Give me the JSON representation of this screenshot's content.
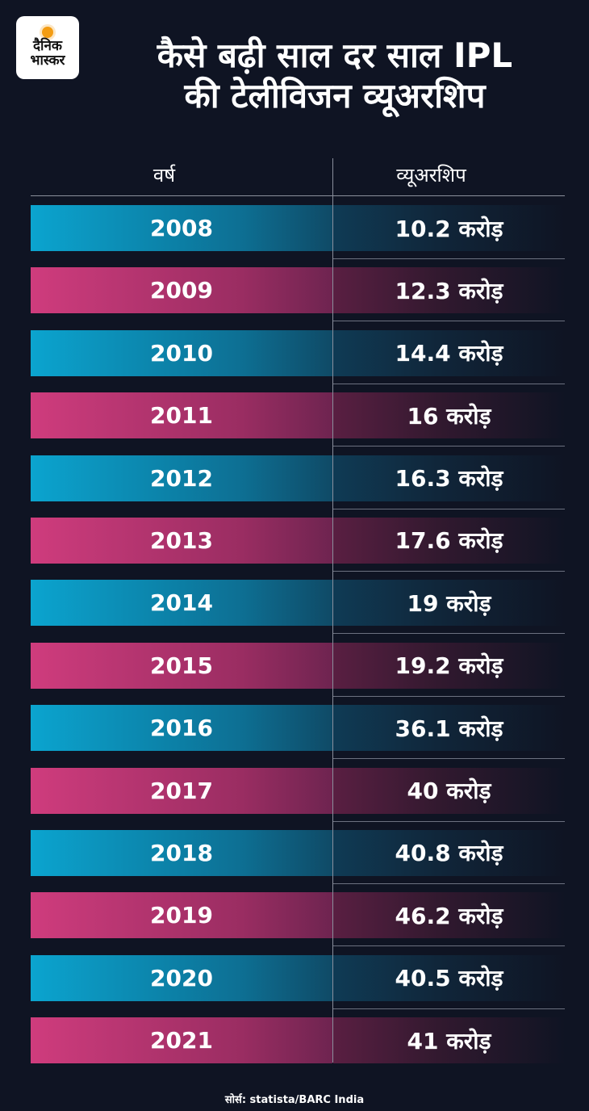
{
  "logo": {
    "line1": "दैनिक",
    "line2": "भास्कर",
    "accent": "#f39c12"
  },
  "title_line1": "कैसे बढ़ी साल दर साल IPL",
  "title_line2": "की टेलीविजन व्यूअरशिप",
  "source": "सोर्स: statista/BARC India",
  "colors": {
    "cyan": "#0ba4cf",
    "pink": "#cf3c7d",
    "background": "#0f1423"
  },
  "chart_data": {
    "type": "table",
    "columns": [
      "वर्ष",
      "व्यूअरशिप"
    ],
    "rows": [
      {
        "year": "2008",
        "value": "10.2 करोड़"
      },
      {
        "year": "2009",
        "value": "12.3 करोड़"
      },
      {
        "year": "2010",
        "value": "14.4 करोड़"
      },
      {
        "year": "2011",
        "value": "16 करोड़"
      },
      {
        "year": "2012",
        "value": "16.3 करोड़"
      },
      {
        "year": "2013",
        "value": "17.6 करोड़"
      },
      {
        "year": "2014",
        "value": "19 करोड़"
      },
      {
        "year": "2015",
        "value": "19.2 करोड़"
      },
      {
        "year": "2016",
        "value": "36.1 करोड़"
      },
      {
        "year": "2017",
        "value": "40 करोड़"
      },
      {
        "year": "2018",
        "value": "40.8 करोड़"
      },
      {
        "year": "2019",
        "value": "46.2 करोड़"
      },
      {
        "year": "2020",
        "value": "40.5 करोड़"
      },
      {
        "year": "2021",
        "value": "41 करोड़"
      }
    ]
  }
}
